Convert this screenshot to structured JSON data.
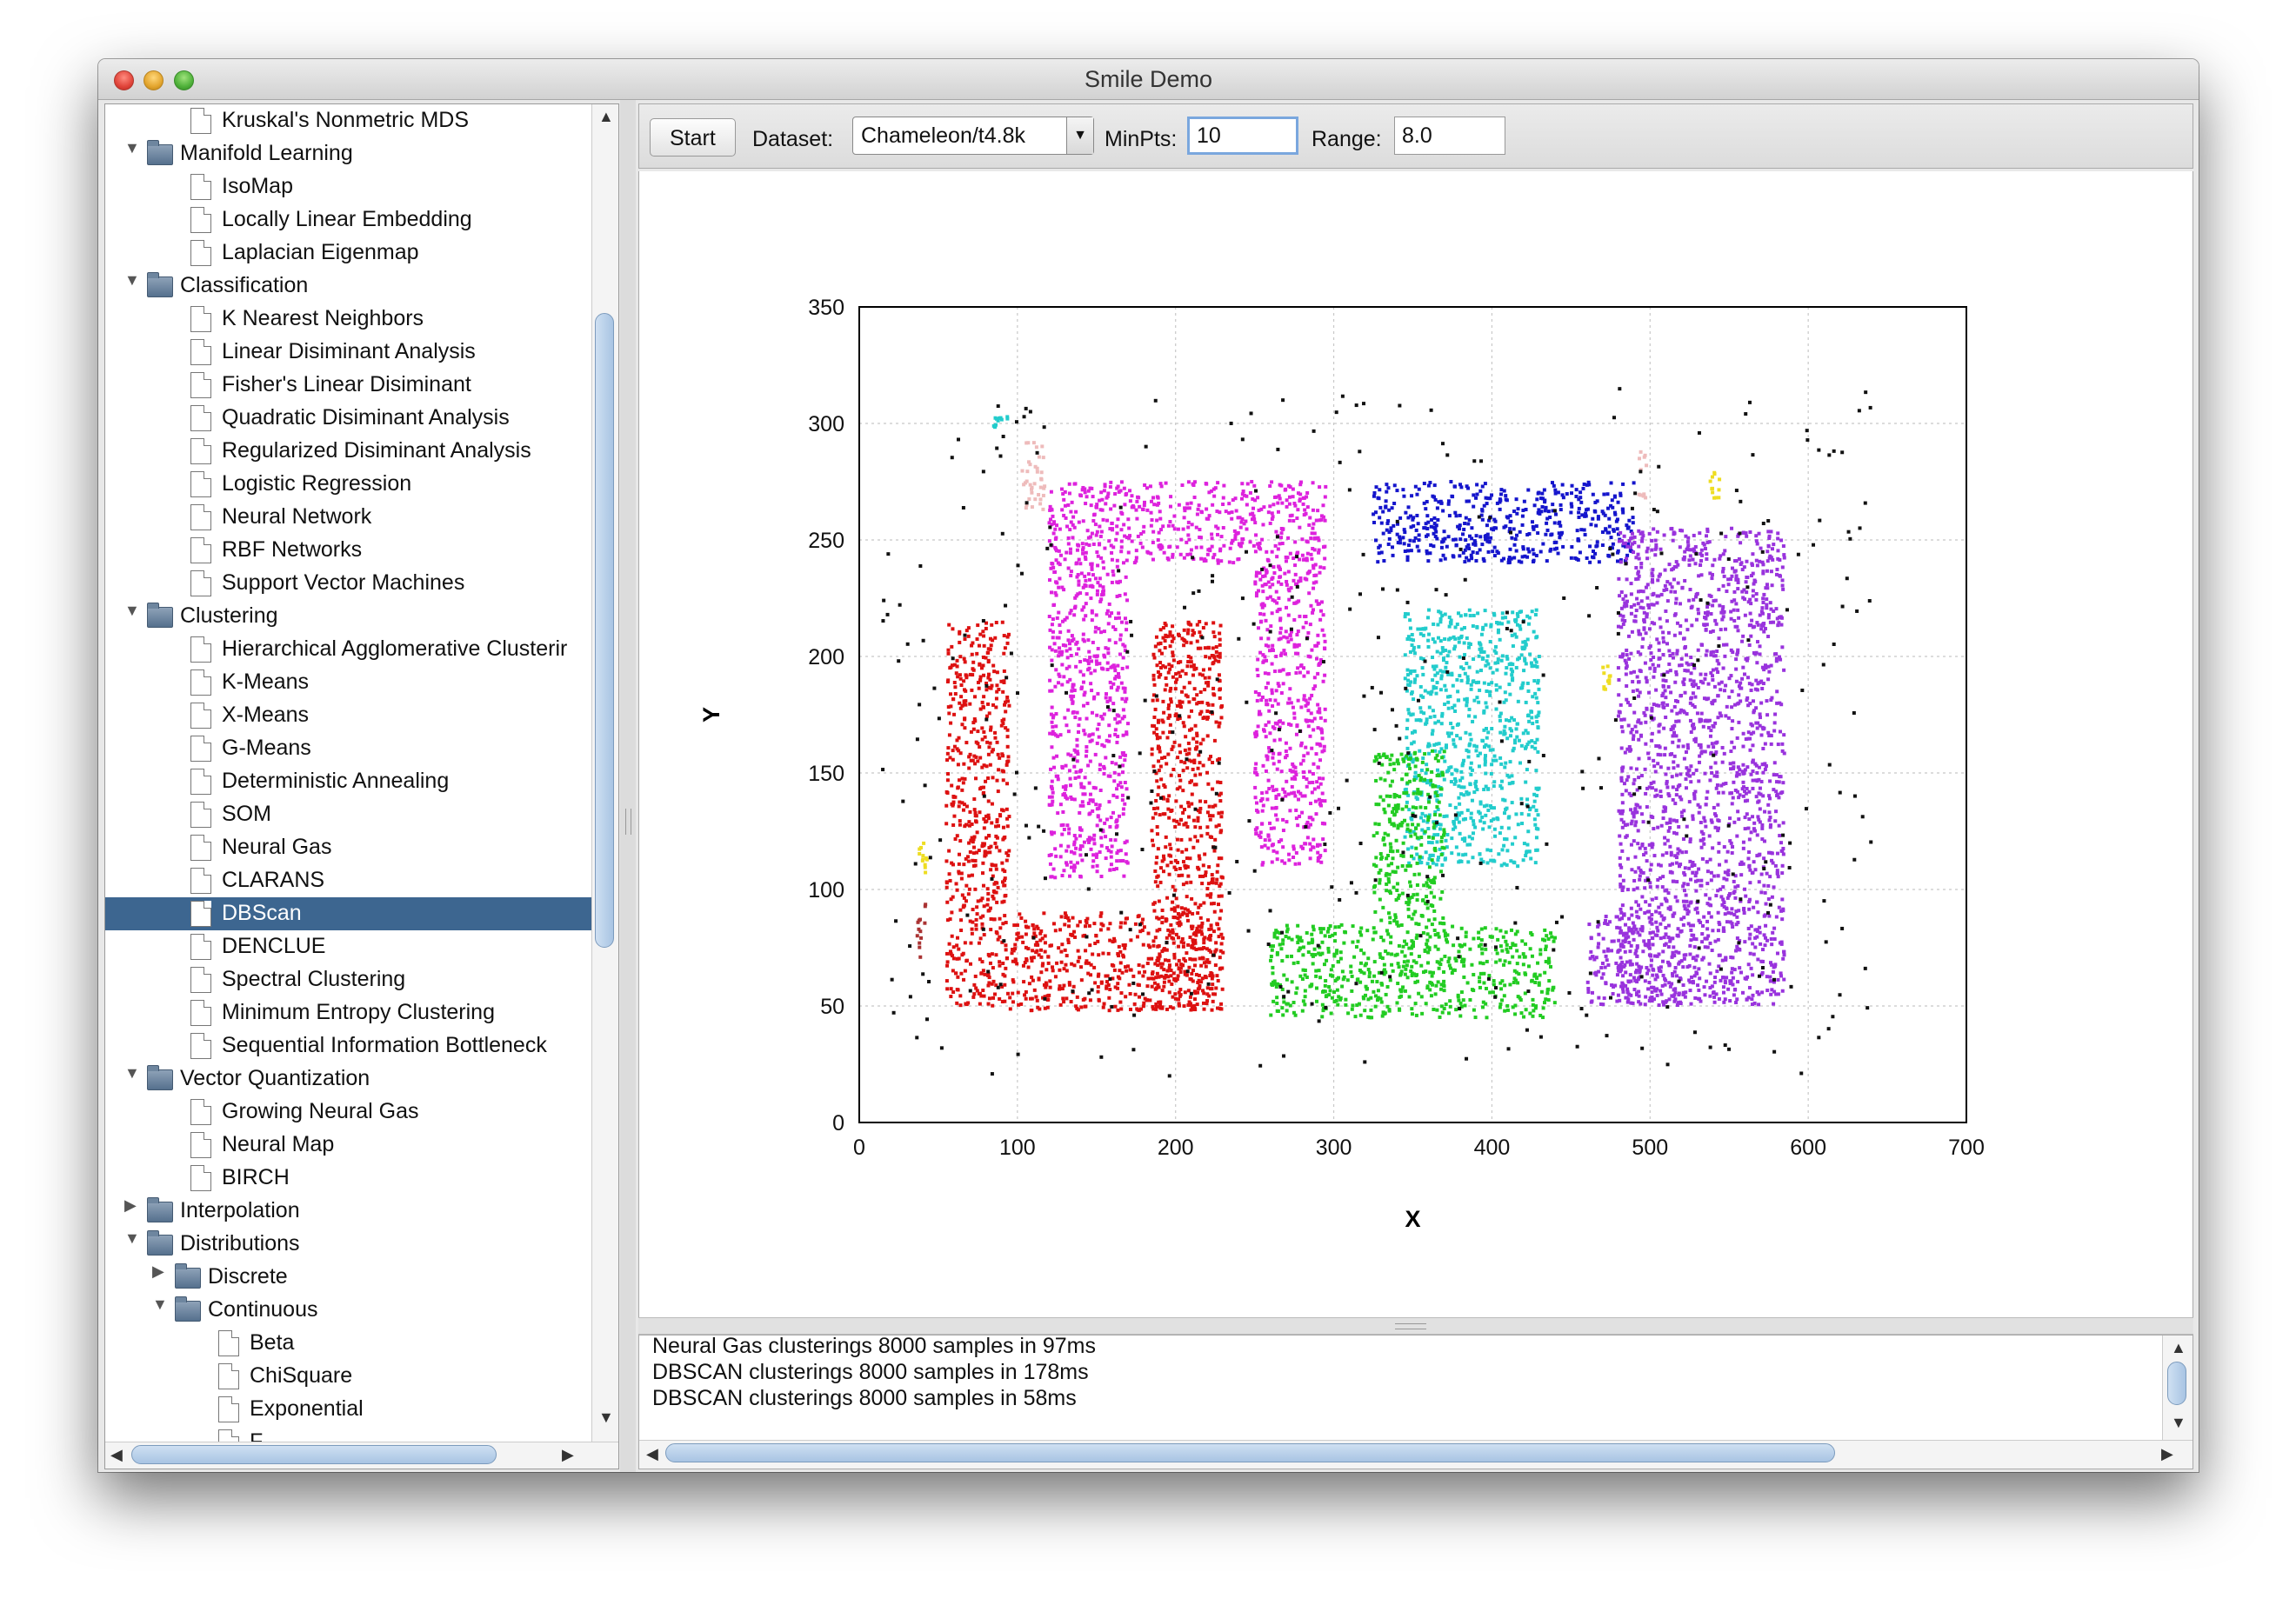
{
  "window": {
    "title": "Smile Demo"
  },
  "tree": {
    "items": [
      {
        "label": "Kruskal's Nonmetric MDS",
        "level": 2,
        "type": "doc"
      },
      {
        "label": "Manifold Learning",
        "level": 1,
        "type": "folder",
        "expanded": true
      },
      {
        "label": "IsoMap",
        "level": 2,
        "type": "doc"
      },
      {
        "label": "Locally Linear Embedding",
        "level": 2,
        "type": "doc"
      },
      {
        "label": "Laplacian Eigenmap",
        "level": 2,
        "type": "doc"
      },
      {
        "label": "Classification",
        "level": 1,
        "type": "folder",
        "expanded": true
      },
      {
        "label": "K Nearest Neighbors",
        "level": 2,
        "type": "doc"
      },
      {
        "label": "Linear Disiminant Analysis",
        "level": 2,
        "type": "doc"
      },
      {
        "label": "Fisher's Linear Disiminant",
        "level": 2,
        "type": "doc"
      },
      {
        "label": "Quadratic Disiminant Analysis",
        "level": 2,
        "type": "doc"
      },
      {
        "label": "Regularized Disiminant Analysis",
        "level": 2,
        "type": "doc"
      },
      {
        "label": "Logistic Regression",
        "level": 2,
        "type": "doc"
      },
      {
        "label": "Neural Network",
        "level": 2,
        "type": "doc"
      },
      {
        "label": "RBF Networks",
        "level": 2,
        "type": "doc"
      },
      {
        "label": "Support Vector Machines",
        "level": 2,
        "type": "doc"
      },
      {
        "label": "Clustering",
        "level": 1,
        "type": "folder",
        "expanded": true
      },
      {
        "label": "Hierarchical Agglomerative Clusterir",
        "level": 2,
        "type": "doc"
      },
      {
        "label": "K-Means",
        "level": 2,
        "type": "doc"
      },
      {
        "label": "X-Means",
        "level": 2,
        "type": "doc"
      },
      {
        "label": "G-Means",
        "level": 2,
        "type": "doc"
      },
      {
        "label": "Deterministic Annealing",
        "level": 2,
        "type": "doc"
      },
      {
        "label": "SOM",
        "level": 2,
        "type": "doc"
      },
      {
        "label": "Neural Gas",
        "level": 2,
        "type": "doc"
      },
      {
        "label": "CLARANS",
        "level": 2,
        "type": "doc"
      },
      {
        "label": "DBScan",
        "level": 2,
        "type": "doc",
        "selected": true
      },
      {
        "label": "DENCLUE",
        "level": 2,
        "type": "doc"
      },
      {
        "label": "Spectral Clustering",
        "level": 2,
        "type": "doc"
      },
      {
        "label": "Minimum Entropy Clustering",
        "level": 2,
        "type": "doc"
      },
      {
        "label": "Sequential Information Bottleneck",
        "level": 2,
        "type": "doc"
      },
      {
        "label": "Vector Quantization",
        "level": 1,
        "type": "folder",
        "expanded": true
      },
      {
        "label": "Growing Neural Gas",
        "level": 2,
        "type": "doc"
      },
      {
        "label": "Neural Map",
        "level": 2,
        "type": "doc"
      },
      {
        "label": "BIRCH",
        "level": 2,
        "type": "doc"
      },
      {
        "label": "Interpolation",
        "level": 1,
        "type": "folder",
        "expanded": false
      },
      {
        "label": "Distributions",
        "level": 1,
        "type": "folder",
        "expanded": true
      },
      {
        "label": "Discrete",
        "level": 2,
        "type": "folder",
        "expanded": false
      },
      {
        "label": "Continuous",
        "level": 2,
        "type": "folder",
        "expanded": true
      },
      {
        "label": "Beta",
        "level": 3,
        "type": "doc"
      },
      {
        "label": "ChiSquare",
        "level": 3,
        "type": "doc"
      },
      {
        "label": "Exponential",
        "level": 3,
        "type": "doc"
      },
      {
        "label": "F",
        "level": 3,
        "type": "doc"
      }
    ]
  },
  "toolbar": {
    "start_label": "Start",
    "dataset_label": "Dataset:",
    "dataset_value": "Chameleon/t4.8k",
    "minpts_label": "MinPts:",
    "minpts_value": "10",
    "range_label": "Range:",
    "range_value": "8.0"
  },
  "log": {
    "lines": [
      "Neural Gas clusterings 8000 samples in 97ms",
      "DBSCAN clusterings 8000 samples in 178ms",
      "DBSCAN clusterings 8000 samples in 58ms"
    ]
  },
  "chart_data": {
    "type": "scatter",
    "xlabel": "X",
    "ylabel": "Y",
    "xlim": [
      0,
      700
    ],
    "ylim": [
      0,
      350
    ],
    "xticks": [
      0,
      100,
      200,
      300,
      400,
      500,
      600,
      700
    ],
    "yticks": [
      0,
      50,
      100,
      150,
      200,
      250,
      300,
      350
    ],
    "grid": true,
    "clusters": [
      {
        "color": "#dd1111",
        "regions": [
          [
            55,
            95,
            50,
            215
          ],
          [
            95,
            225,
            48,
            90
          ],
          [
            185,
            230,
            48,
            215
          ]
        ]
      },
      {
        "color": "#dd22dd",
        "regions": [
          [
            120,
            295,
            240,
            275
          ],
          [
            120,
            170,
            105,
            240
          ],
          [
            250,
            295,
            110,
            240
          ]
        ]
      },
      {
        "color": "#1515cc",
        "regions": [
          [
            325,
            490,
            240,
            275
          ]
        ]
      },
      {
        "color": "#22cccc",
        "regions": [
          [
            345,
            430,
            110,
            220
          ],
          [
            85,
            95,
            298,
            303
          ]
        ]
      },
      {
        "color": "#22cc22",
        "regions": [
          [
            260,
            440,
            45,
            85
          ],
          [
            325,
            370,
            85,
            160
          ]
        ]
      },
      {
        "color": "#9933dd",
        "regions": [
          [
            480,
            585,
            50,
            255
          ],
          [
            460,
            520,
            50,
            90
          ]
        ]
      },
      {
        "color": "#eebbbb",
        "regions": [
          [
            103,
            118,
            262,
            292
          ],
          [
            493,
            498,
            268,
            288
          ]
        ]
      },
      {
        "color": "#eedd22",
        "regions": [
          [
            38,
            43,
            105,
            120
          ],
          [
            470,
            476,
            185,
            200
          ],
          [
            538,
            545,
            268,
            280
          ]
        ]
      },
      {
        "color": "#aa3333",
        "regions": [
          [
            36,
            42,
            70,
            95
          ]
        ]
      },
      {
        "color": "#111111",
        "noise": true,
        "regions": [
          [
            10,
            640,
            20,
            315
          ]
        ]
      }
    ]
  }
}
